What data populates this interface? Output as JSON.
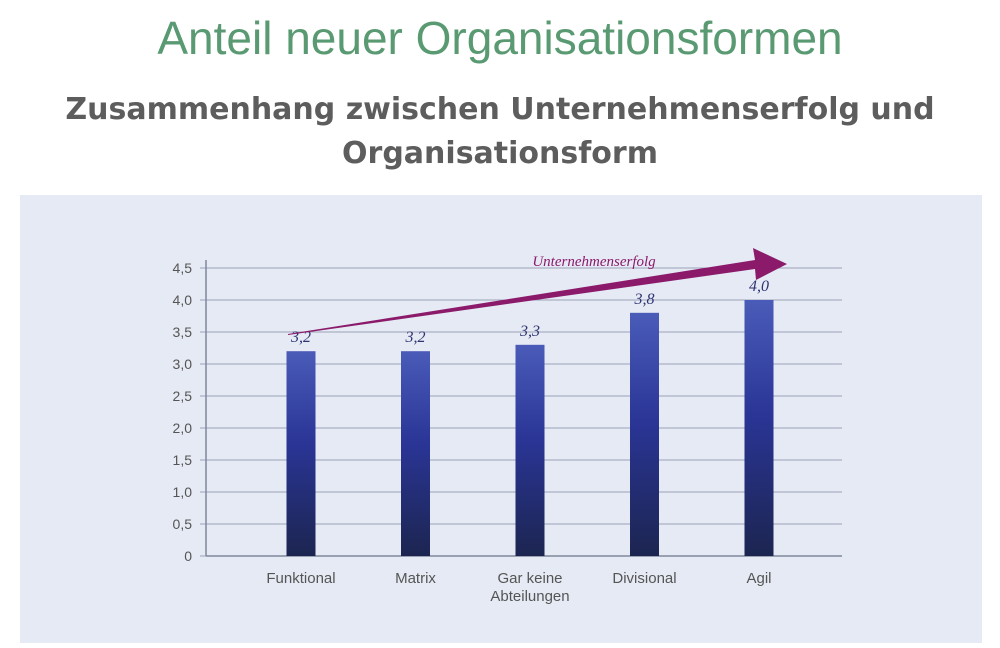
{
  "page": {
    "title": "Anteil neuer Organisationsformen",
    "subtitle_line1": "Zusammenhang zwischen Unternehmenserfolg und",
    "subtitle_line2": "Organisationsform"
  },
  "chart_data": {
    "type": "bar",
    "categories": [
      "Funktional",
      "Matrix",
      "Gar keine Abteilungen",
      "Divisional",
      "Agil"
    ],
    "category_lines": [
      [
        "Funktional"
      ],
      [
        "Matrix"
      ],
      [
        "Gar keine",
        "Abteilungen"
      ],
      [
        "Divisional"
      ],
      [
        "Agil"
      ]
    ],
    "values": [
      3.2,
      3.2,
      3.3,
      3.8,
      4.0
    ],
    "value_labels": [
      "3,2",
      "3,2",
      "3,3",
      "3,8",
      "4,0"
    ],
    "y_ticks": [
      0,
      0.5,
      1.0,
      1.5,
      2.0,
      2.5,
      3.0,
      3.5,
      4.0,
      4.5
    ],
    "y_tick_labels": [
      "0",
      "0,5",
      "1,0",
      "1,5",
      "2,0",
      "2,5",
      "3,0",
      "3,5",
      "4,0",
      "4,5"
    ],
    "ylim": [
      0,
      4.5
    ],
    "grid": true,
    "annotation": "Unternehmenserfolg",
    "colors": {
      "bar_top": "#4a5bb8",
      "bar_mid": "#2a3596",
      "bar_bottom": "#1c2550",
      "arrow": "#8b1a6b",
      "value_label": "#2e3470",
      "grid": "#9aa2b8",
      "tick_label": "#555555"
    }
  }
}
